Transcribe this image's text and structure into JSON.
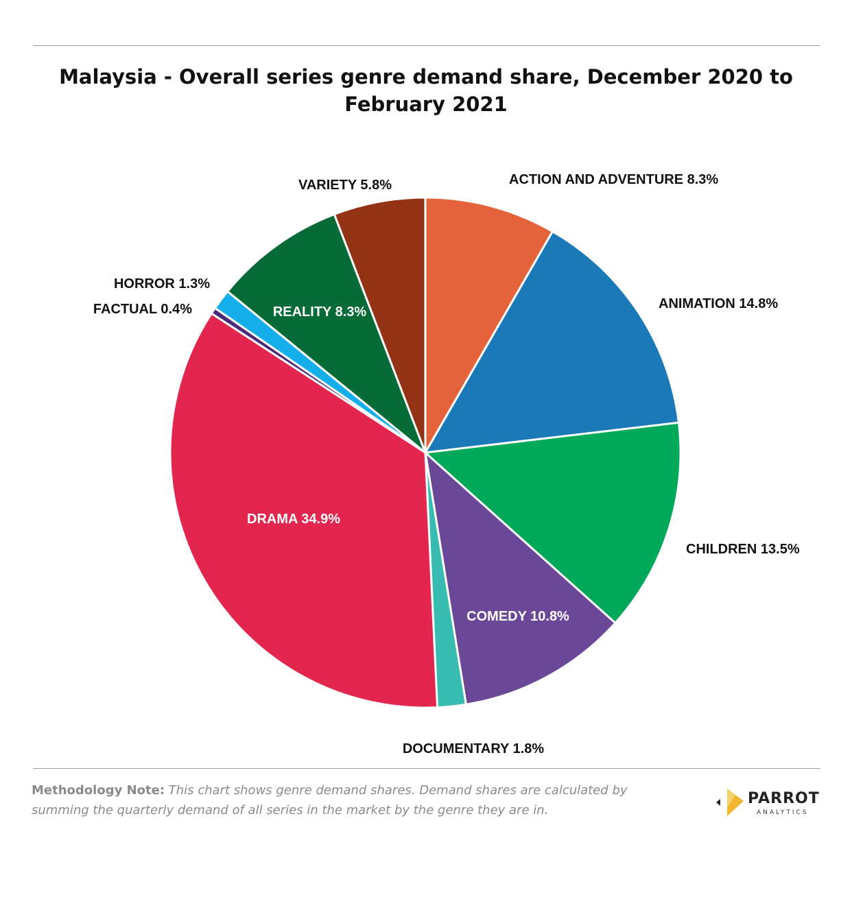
{
  "title": "Malaysia - Overall series genre demand share, December 2020 to February 2021",
  "chart_data": {
    "type": "pie",
    "title": "Malaysia - Overall series genre demand share, December 2020 to February 2021",
    "slices": [
      {
        "label": "ACTION AND ADVENTURE 8.3%",
        "name": "Action and Adventure",
        "value": 8.3,
        "color": "#E4633A"
      },
      {
        "label": "ANIMATION 14.8%",
        "name": "Animation",
        "value": 14.8,
        "color": "#1B79B8"
      },
      {
        "label": "CHILDREN 13.5%",
        "name": "Children",
        "value": 13.5,
        "color": "#00A85A"
      },
      {
        "label": "COMEDY 10.8%",
        "name": "Comedy",
        "value": 10.8,
        "color": "#6B4798"
      },
      {
        "label": "DOCUMENTARY 1.8%",
        "name": "Documentary",
        "value": 1.8,
        "color": "#38BBB1"
      },
      {
        "label": "DRAMA 34.9%",
        "name": "Drama",
        "value": 34.9,
        "color": "#E3264E"
      },
      {
        "label": "FACTUAL 0.4%",
        "name": "Factual",
        "value": 0.4,
        "color": "#4B2A7A"
      },
      {
        "label": "HORROR 1.3%",
        "name": "Horror",
        "value": 1.3,
        "color": "#14AEEA"
      },
      {
        "label": "REALITY 8.3%",
        "name": "Reality",
        "value": 8.3,
        "color": "#066B37"
      },
      {
        "label": "VARIETY 5.8%",
        "name": "Variety",
        "value": 5.8,
        "color": "#923316"
      }
    ]
  },
  "note": {
    "lead": "Methodology Note:",
    "body": " This chart shows genre demand shares. Demand shares are calculated by summing the quarterly demand of all series in the market by the genre they are in."
  },
  "logo": {
    "brand": "PARROT",
    "sub": "ANALYTICS"
  }
}
